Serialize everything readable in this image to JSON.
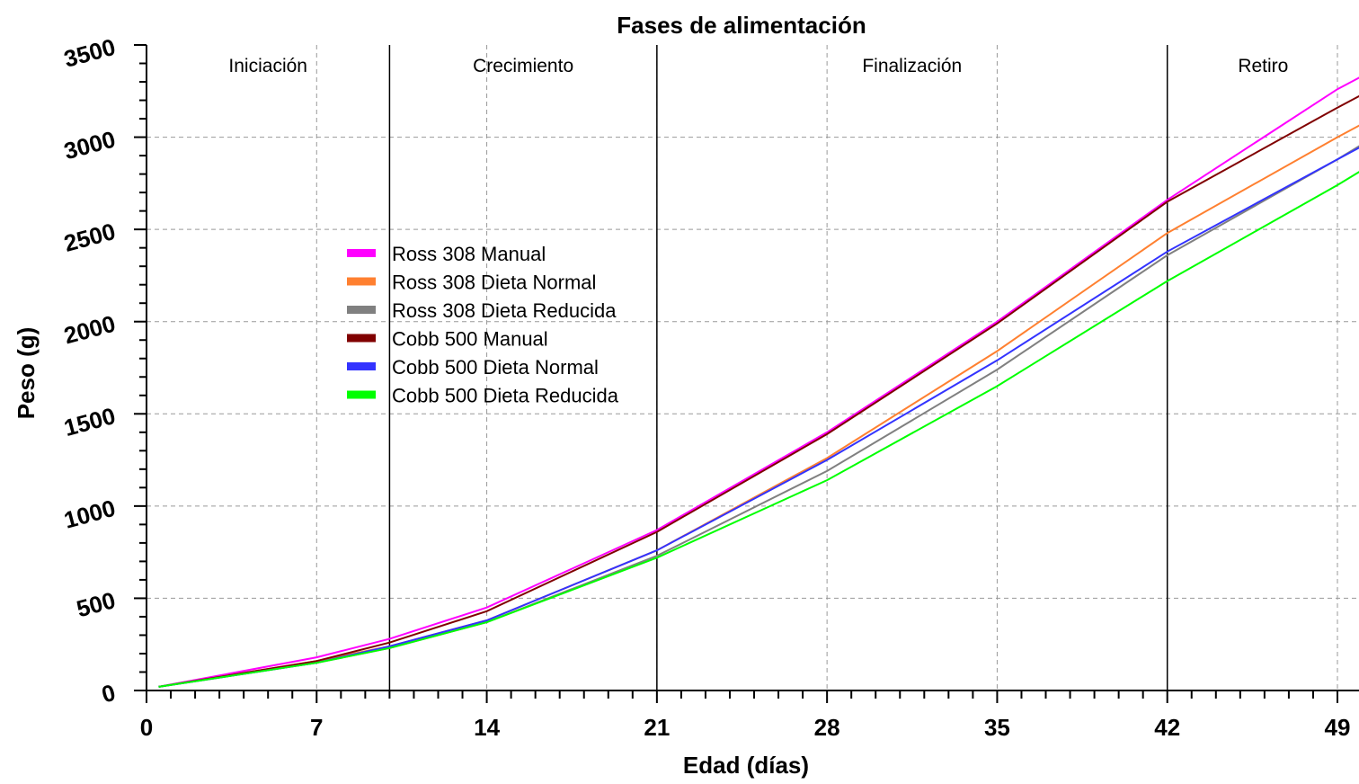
{
  "chart_data": {
    "type": "line",
    "title": "Fases de alimentación",
    "xlabel": "Edad (días)",
    "ylabel": "Peso (g)",
    "xlim": [
      0,
      50
    ],
    "ylim": [
      0,
      3500
    ],
    "xticks": [
      "0",
      "7",
      "14",
      "21",
      "28",
      "35",
      "42",
      "49"
    ],
    "yticks": [
      "0",
      "500",
      "1000",
      "1500",
      "2000",
      "2500",
      "3000",
      "3500"
    ],
    "grid": true,
    "legend_position": "center-left",
    "phases": [
      {
        "label": "Iniciación",
        "start": 0,
        "end": 10
      },
      {
        "label": "Crecimiento",
        "start": 10,
        "end": 21
      },
      {
        "label": "Finalización",
        "start": 21,
        "end": 42
      },
      {
        "label": "Retiro",
        "start": 42,
        "end": 50
      }
    ],
    "x": [
      0.5,
      7,
      10,
      14,
      21,
      28,
      35,
      42,
      49,
      50
    ],
    "series": [
      {
        "name": "Ross 308 Manual",
        "color": "#ff00ff",
        "values": [
          20,
          180,
          280,
          450,
          870,
          1400,
          2000,
          2660,
          3260,
          3330
        ]
      },
      {
        "name": "Ross 308 Dieta Normal",
        "color": "#ff8030",
        "values": [
          20,
          160,
          240,
          380,
          760,
          1260,
          1840,
          2480,
          3000,
          3070
        ]
      },
      {
        "name": "Ross 308 Dieta Reducida",
        "color": "#808080",
        "values": [
          20,
          150,
          230,
          370,
          730,
          1190,
          1740,
          2360,
          2880,
          2960
        ]
      },
      {
        "name": "Cobb 500 Manual",
        "color": "#800000",
        "values": [
          20,
          160,
          260,
          430,
          860,
          1390,
          1990,
          2650,
          3160,
          3230
        ]
      },
      {
        "name": "Cobb 500 Dieta Normal",
        "color": "#3333ff",
        "values": [
          20,
          150,
          240,
          380,
          760,
          1250,
          1790,
          2380,
          2880,
          2950
        ]
      },
      {
        "name": "Cobb 500 Dieta Reducida",
        "color": "#00ff00",
        "values": [
          20,
          150,
          230,
          370,
          720,
          1140,
          1650,
          2220,
          2740,
          2820
        ]
      }
    ]
  }
}
